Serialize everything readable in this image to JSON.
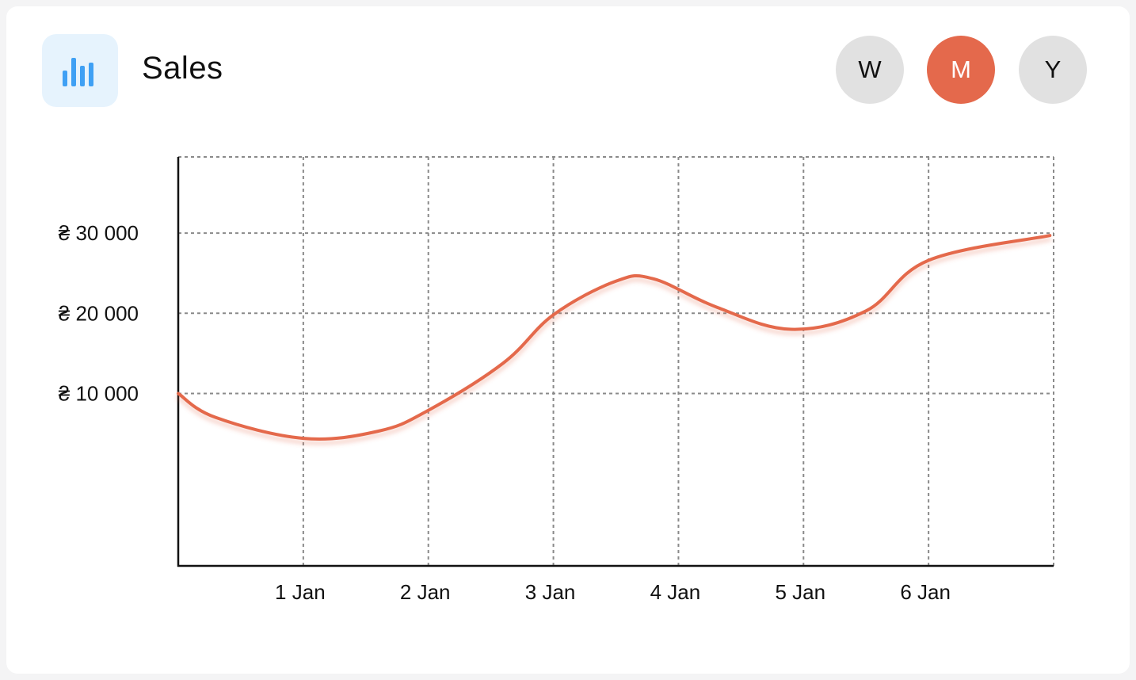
{
  "widget": {
    "title": "Sales",
    "icon": "bar-chart-icon",
    "icon_color": "#3fa0f4",
    "icon_bg": "#e6f3fd"
  },
  "period_selector": {
    "options": [
      "W",
      "M",
      "Y"
    ],
    "selected": "M",
    "active_color": "#e4694c",
    "inactive_color": "#e1e1e1"
  },
  "chart_data": {
    "type": "line",
    "title": "",
    "xlabel": "",
    "ylabel": "",
    "categories": [
      "1 Jan",
      "2 Jan",
      "3 Jan",
      "4 Jan",
      "5 Jan",
      "6 Jan"
    ],
    "x_range": [
      0,
      7
    ],
    "ylim": [
      -11500,
      39500
    ],
    "yticks": [
      10000,
      20000,
      30000
    ],
    "ytick_labels": [
      "₴ 10 000",
      "₴ 20 000",
      "₴ 30 000"
    ],
    "grid": true,
    "series": [
      {
        "name": "Sales",
        "color": "#e4694c",
        "x": [
          0,
          0.3,
          1.0,
          1.6,
          2.0,
          2.6,
          3.0,
          3.5,
          3.8,
          4.3,
          4.9,
          5.5,
          6.0,
          6.97
        ],
        "values": [
          10000,
          7000,
          4400,
          5300,
          7900,
          13800,
          19800,
          24000,
          24300,
          20800,
          18000,
          20300,
          26600,
          29700
        ]
      }
    ]
  }
}
